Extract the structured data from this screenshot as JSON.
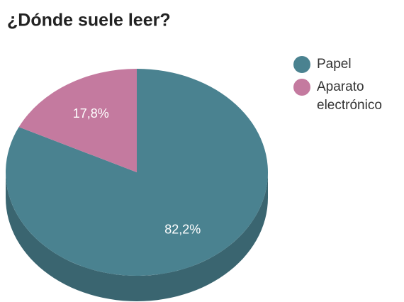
{
  "chart_data": {
    "type": "pie",
    "title": "¿Dónde suele leer?",
    "categories": [
      "Papel",
      "Aparato electrónico"
    ],
    "values": [
      82.2,
      17.8
    ],
    "value_labels": [
      "82,2%",
      "17,8%"
    ],
    "colors": [
      "#4a8290",
      "#c47a9f"
    ],
    "three_d": true,
    "legend": "right"
  }
}
